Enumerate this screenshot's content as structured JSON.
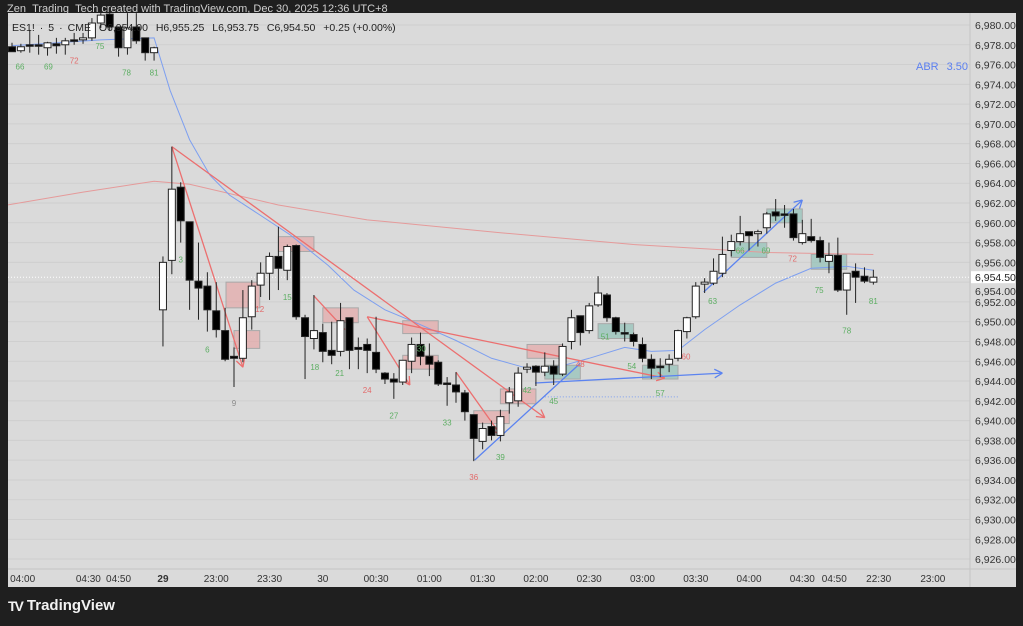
{
  "header": {
    "attribution": "Zen_Trading_Tech created with TradingView.com, Dec 30, 2025 12:36 UTC+8"
  },
  "legend": {
    "symbol": "ES1!",
    "interval": "5",
    "exchange": "CME",
    "open": "O6,954.00",
    "high": "H6,955.25",
    "low": "L6,953.75",
    "close": "C6,954.50",
    "change": "+0.25 (+0.00%)"
  },
  "indicator": {
    "name": "ABR",
    "value": "3.50"
  },
  "brand": {
    "name": "TradingView"
  },
  "colors": {
    "background": "#dadada",
    "frame": "#1f1f1f",
    "ema": "#7d9ff0",
    "ma": "#e59a9a",
    "trend_red": "#ec6f6f",
    "trend_blue": "#5b83f0",
    "label_green": "#5cae62",
    "label_red": "#e26a6a",
    "label_gray": "#8a8a8a",
    "box_red": "#e8a0a0",
    "box_green": "#8cc0b6"
  },
  "chart_data": {
    "type": "candlestick",
    "title": "",
    "ylim": [
      6925.0,
      6981.2
    ],
    "grid": true,
    "current_price": "6,954.50",
    "y_ticks": [
      "6,980.00",
      "6,978.00",
      "6,976.00",
      "6,974.00",
      "6,972.00",
      "6,970.00",
      "6,968.00",
      "6,966.00",
      "6,964.00",
      "6,962.00",
      "6,960.00",
      "6,958.00",
      "6,956.00",
      "6,954.00",
      "6,952.00",
      "6,950.00",
      "6,948.00",
      "6,946.00",
      "6,944.00",
      "6,942.00",
      "6,940.00",
      "6,938.00",
      "6,936.00",
      "6,934.00",
      "6,932.00",
      "6,930.00",
      "6,928.00",
      "6,926.00"
    ],
    "x_ticks": [
      {
        "bar": 1.2,
        "label": "04:00"
      },
      {
        "bar": 8.6,
        "label": "04:30"
      },
      {
        "bar": 12,
        "label": "04:50"
      },
      {
        "bar": 17,
        "label": "29",
        "bold": true
      },
      {
        "bar": 23,
        "label": "23:00"
      },
      {
        "bar": 29,
        "label": "23:30"
      },
      {
        "bar": 35,
        "label": "30"
      },
      {
        "bar": 41,
        "label": "00:30"
      },
      {
        "bar": 47,
        "label": "01:00"
      },
      {
        "bar": 53,
        "label": "01:30"
      },
      {
        "bar": 59,
        "label": "02:00"
      },
      {
        "bar": 65,
        "label": "02:30"
      },
      {
        "bar": 71,
        "label": "03:00"
      },
      {
        "bar": 77,
        "label": "03:30"
      },
      {
        "bar": 83,
        "label": "04:00"
      },
      {
        "bar": 89,
        "label": "04:30"
      },
      {
        "bar": 92.6,
        "label": "04:50"
      },
      {
        "bar": 97.6,
        "label": "22:30"
      },
      {
        "bar": 103.7,
        "label": "23:00"
      }
    ],
    "ohlc_order": [
      "open",
      "high",
      "low",
      "close"
    ],
    "candles": [
      [
        6977.8,
        6978.2,
        6977.3,
        6977.3
      ],
      [
        6977.4,
        6978.1,
        6977.2,
        6977.8
      ],
      [
        6978.0,
        6979.5,
        6977.2,
        6978.0
      ],
      [
        6978.0,
        6979.0,
        6977.0,
        6978.0
      ],
      [
        6977.7,
        6978.3,
        6976.9,
        6978.2
      ],
      [
        6978.1,
        6978.7,
        6977.1,
        6977.9
      ],
      [
        6978.0,
        6978.7,
        6977.0,
        6978.4
      ],
      [
        6978.5,
        6979.2,
        6978.0,
        6978.5
      ],
      [
        6978.5,
        6979.2,
        6978.1,
        6978.7
      ],
      [
        6978.7,
        6980.7,
        6978.4,
        6980.2
      ],
      [
        6980.2,
        6981.2,
        6979.7,
        6981.0
      ],
      [
        6981.1,
        6981.2,
        6979.4,
        6979.8
      ],
      [
        6979.8,
        6979.8,
        6976.8,
        6977.7
      ],
      [
        6977.7,
        6981.2,
        6977.0,
        6979.7
      ],
      [
        6979.8,
        6981.2,
        6978.1,
        6978.4
      ],
      [
        6978.7,
        6978.7,
        6976.4,
        6977.2
      ],
      [
        6977.2,
        6977.8,
        6976.4,
        6977.7
      ],
      [
        6951.2,
        6956.6,
        6947.5,
        6956.0
      ],
      [
        6956.2,
        6967.7,
        6954.8,
        6963.4
      ],
      [
        6963.6,
        6964.1,
        6958.0,
        6960.2
      ],
      [
        6960.1,
        6960.1,
        6951.2,
        6954.2
      ],
      [
        6954.1,
        6958.0,
        6950.2,
        6953.4
      ],
      [
        6953.6,
        6955.0,
        6949.0,
        6951.2
      ],
      [
        6951.1,
        6954.0,
        6948.4,
        6949.2
      ],
      [
        6949.1,
        6951.4,
        6946.0,
        6946.2
      ],
      [
        6946.5,
        6947.4,
        6943.4,
        6946.3
      ],
      [
        6946.3,
        6953.2,
        6945.9,
        6950.4
      ],
      [
        6950.5,
        6954.2,
        6949.2,
        6953.6
      ],
      [
        6953.7,
        6956.0,
        6952.5,
        6954.9
      ],
      [
        6954.9,
        6957.0,
        6952.2,
        6956.6
      ],
      [
        6956.6,
        6959.6,
        6953.2,
        6955.4
      ],
      [
        6955.2,
        6957.8,
        6954.2,
        6957.6
      ],
      [
        6957.7,
        6957.8,
        6950.2,
        6950.5
      ],
      [
        6950.4,
        6950.7,
        6944.2,
        6948.5
      ],
      [
        6948.3,
        6952.7,
        6947.2,
        6949.1
      ],
      [
        6948.9,
        6949.8,
        6945.9,
        6947.0
      ],
      [
        6947.1,
        6950.0,
        6945.7,
        6946.6
      ],
      [
        6947.0,
        6951.9,
        6946.5,
        6950.1
      ],
      [
        6950.4,
        6950.4,
        6945.2,
        6947.1
      ],
      [
        6947.4,
        6948.4,
        6945.2,
        6947.2
      ],
      [
        6947.7,
        6948.3,
        6944.8,
        6947.1
      ],
      [
        6946.9,
        6950.5,
        6944.8,
        6945.2
      ],
      [
        6944.8,
        6944.9,
        6943.7,
        6944.2
      ],
      [
        6944.2,
        6944.8,
        6942.2,
        6943.9
      ],
      [
        6943.9,
        6946.1,
        6943.6,
        6946.1
      ],
      [
        6946.0,
        6948.4,
        6944.8,
        6947.7
      ],
      [
        6947.7,
        6948.9,
        6945.6,
        6946.5
      ],
      [
        6946.5,
        6947.8,
        6944.5,
        6945.7
      ],
      [
        6945.9,
        6946.1,
        6943.5,
        6943.7
      ],
      [
        6943.8,
        6944.4,
        6941.5,
        6943.7
      ],
      [
        6943.6,
        6944.9,
        6941.8,
        6942.9
      ],
      [
        6942.8,
        6943.1,
        6940.0,
        6940.9
      ],
      [
        6940.6,
        6940.6,
        6935.9,
        6938.2
      ],
      [
        6937.9,
        6939.8,
        6937.1,
        6939.2
      ],
      [
        6939.4,
        6940.0,
        6938.0,
        6938.5
      ],
      [
        6938.5,
        6941.1,
        6937.9,
        6940.4
      ],
      [
        6941.8,
        6943.4,
        6940.7,
        6942.9
      ],
      [
        6942.0,
        6945.4,
        6941.4,
        6944.8
      ],
      [
        6945.2,
        6945.8,
        6944.8,
        6945.4
      ],
      [
        6945.5,
        6945.6,
        6943.5,
        6944.9
      ],
      [
        6944.9,
        6946.9,
        6944.5,
        6945.5
      ],
      [
        6945.5,
        6946.1,
        6943.6,
        6944.7
      ],
      [
        6944.7,
        6947.8,
        6944.5,
        6947.5
      ],
      [
        6948.0,
        6951.2,
        6947.2,
        6950.4
      ],
      [
        6950.6,
        6950.6,
        6947.6,
        6948.9
      ],
      [
        6949.1,
        6951.9,
        6948.8,
        6951.6
      ],
      [
        6951.7,
        6954.6,
        6951.5,
        6952.9
      ],
      [
        6952.7,
        6952.9,
        6950.0,
        6950.4
      ],
      [
        6950.4,
        6950.5,
        6948.7,
        6949.0
      ],
      [
        6948.9,
        6949.9,
        6948.0,
        6948.8
      ],
      [
        6948.7,
        6948.9,
        6947.5,
        6948.0
      ],
      [
        6947.7,
        6948.4,
        6945.9,
        6946.3
      ],
      [
        6946.2,
        6946.7,
        6944.2,
        6945.3
      ],
      [
        6945.5,
        6946.3,
        6944.4,
        6945.4
      ],
      [
        6945.7,
        6946.7,
        6944.9,
        6946.2
      ],
      [
        6946.3,
        6949.2,
        6946.0,
        6949.1
      ],
      [
        6949.0,
        6950.5,
        6948.3,
        6950.4
      ],
      [
        6950.5,
        6954.0,
        6950.3,
        6953.6
      ],
      [
        6953.8,
        6954.4,
        6952.9,
        6954.0
      ],
      [
        6953.9,
        6956.4,
        6953.7,
        6955.1
      ],
      [
        6954.9,
        6958.6,
        6954.5,
        6956.8
      ],
      [
        6957.2,
        6958.8,
        6956.6,
        6958.1
      ],
      [
        6958.1,
        6960.7,
        6957.7,
        6958.9
      ],
      [
        6959.1,
        6959.1,
        6957.2,
        6958.7
      ],
      [
        6958.9,
        6959.3,
        6957.6,
        6959.1
      ],
      [
        6959.5,
        6961.1,
        6958.9,
        6960.9
      ],
      [
        6961.1,
        6962.4,
        6960.2,
        6960.7
      ],
      [
        6960.9,
        6961.8,
        6959.5,
        6960.9
      ],
      [
        6960.9,
        6961.4,
        6958.2,
        6958.5
      ],
      [
        6958.0,
        6960.3,
        6957.8,
        6958.9
      ],
      [
        6958.6,
        6960.4,
        6958.0,
        6958.2
      ],
      [
        6958.2,
        6958.6,
        6956.0,
        6956.5
      ],
      [
        6956.1,
        6958.0,
        6954.9,
        6956.7
      ],
      [
        6956.7,
        6958.5,
        6953.0,
        6953.2
      ],
      [
        6953.2,
        6954.9,
        6950.7,
        6954.9
      ],
      [
        6955.1,
        6955.9,
        6951.9,
        6954.5
      ],
      [
        6954.6,
        6955.5,
        6953.9,
        6954.1
      ],
      [
        6954.0,
        6955.25,
        6953.75,
        6954.5
      ]
    ],
    "ema_line": [
      [
        0,
        6977.9
      ],
      [
        10,
        6978.5
      ],
      [
        16,
        6978.7
      ],
      [
        17.8,
        6973.4
      ],
      [
        20,
        6968.4
      ],
      [
        22.3,
        6964.8
      ],
      [
        24.5,
        6962.8
      ],
      [
        27.9,
        6960.8
      ],
      [
        31.3,
        6958.8
      ],
      [
        35.6,
        6955.7
      ],
      [
        38.5,
        6953.2
      ],
      [
        42,
        6951.2
      ],
      [
        46,
        6949.7
      ],
      [
        50,
        6948.1
      ],
      [
        54,
        6946.3
      ],
      [
        58,
        6945.3
      ],
      [
        61,
        6945.3
      ],
      [
        65,
        6946.3
      ],
      [
        69,
        6947.4
      ],
      [
        72,
        6947.0
      ],
      [
        75,
        6947.1
      ],
      [
        78,
        6949.2
      ],
      [
        82,
        6951.7
      ],
      [
        86,
        6953.9
      ],
      [
        90,
        6955.4
      ],
      [
        94,
        6955.6
      ],
      [
        97,
        6955.2
      ]
    ],
    "ma_line": [
      [
        -0.5,
        6961.8
      ],
      [
        8,
        6963.1
      ],
      [
        16,
        6964.2
      ],
      [
        20,
        6963.9
      ],
      [
        30,
        6961.8
      ],
      [
        40,
        6960.3
      ],
      [
        55,
        6959.0
      ],
      [
        70,
        6957.8
      ],
      [
        85,
        6957.0
      ],
      [
        97,
        6956.8
      ]
    ],
    "red_trendlines": [
      {
        "from": [
          18,
          6967.7
        ],
        "to": [
          26,
          6945.4
        ],
        "arrow": true
      },
      {
        "from": [
          18,
          6967.7
        ],
        "to": [
          60,
          6940.3
        ],
        "arrow": true
      },
      {
        "from": [
          40,
          6950.5
        ],
        "to": [
          73.5,
          6944.3
        ],
        "arrow": true
      },
      {
        "from": [
          40,
          6950.5
        ],
        "to": [
          44.8,
          6943.6
        ],
        "arrow": true
      },
      {
        "from": [
          34,
          6952.6
        ],
        "to": [
          37.5,
          6949.2
        ],
        "arrow": false
      },
      {
        "from": [
          50,
          6944.9
        ],
        "to": [
          55,
          6938.6
        ],
        "arrow": true
      }
    ],
    "blue_trendlines": [
      {
        "from": [
          52.1,
          6936.0
        ],
        "to": [
          64,
          6945.8
        ],
        "arrow": false
      },
      {
        "from": [
          58.9,
          6943.8
        ],
        "to": [
          80,
          6944.8
        ],
        "arrow": true
      },
      {
        "from": [
          77.9,
          6953.0
        ],
        "to": [
          89,
          6962.3
        ],
        "arrow": true
      }
    ],
    "dotted_level": {
      "from_bar": 60,
      "to_bar": 75,
      "price": 6942.4
    },
    "red_boxes": [
      [
        24.1,
        27.9,
        6954.0,
        6951.4
      ],
      [
        25,
        27.9,
        6949.1,
        6947.3
      ],
      [
        30,
        34,
        6958.6,
        6957.1
      ],
      [
        35,
        39,
        6951.4,
        6949.9
      ],
      [
        44,
        48,
        6950.1,
        6948.8
      ],
      [
        44,
        48,
        6946.6,
        6945.2
      ],
      [
        52,
        56,
        6941.0,
        6939.7
      ],
      [
        55,
        59,
        6943.2,
        6941.7
      ],
      [
        58,
        62,
        6947.7,
        6946.3
      ]
    ],
    "green_boxes": [
      [
        60,
        64,
        6945.6,
        6944.2
      ],
      [
        66,
        70,
        6949.8,
        6948.3
      ],
      [
        71,
        75,
        6945.6,
        6944.2
      ],
      [
        81,
        85,
        6958.0,
        6956.5
      ],
      [
        85,
        89,
        6961.4,
        6960.0
      ],
      [
        90,
        94,
        6956.8,
        6955.3
      ]
    ],
    "bar_count_labels": [
      {
        "text": "66",
        "bar": 0.9,
        "price": 6975.8,
        "tone": "green"
      },
      {
        "text": "69",
        "bar": 4.1,
        "price": 6975.8,
        "tone": "green"
      },
      {
        "text": "72",
        "bar": 7.0,
        "price": 6976.4,
        "tone": "red"
      },
      {
        "text": "75",
        "bar": 9.9,
        "price": 6977.9,
        "tone": "green"
      },
      {
        "text": "78",
        "bar": 12.9,
        "price": 6975.2,
        "tone": "green"
      },
      {
        "text": "81",
        "bar": 16.0,
        "price": 6975.2,
        "tone": "green"
      },
      {
        "text": "3",
        "bar": 19.0,
        "price": 6956.3,
        "tone": "green"
      },
      {
        "text": "6",
        "bar": 22.0,
        "price": 6947.2,
        "tone": "green"
      },
      {
        "text": "9",
        "bar": 25.0,
        "price": 6941.8,
        "tone": "gray"
      },
      {
        "text": "12",
        "bar": 27.9,
        "price": 6951.3,
        "tone": "red"
      },
      {
        "text": "15",
        "bar": 31.0,
        "price": 6952.5,
        "tone": "green"
      },
      {
        "text": "18",
        "bar": 34.1,
        "price": 6945.4,
        "tone": "green"
      },
      {
        "text": "21",
        "bar": 36.9,
        "price": 6944.8,
        "tone": "green"
      },
      {
        "text": "24",
        "bar": 40.0,
        "price": 6943.1,
        "tone": "red"
      },
      {
        "text": "27",
        "bar": 43.0,
        "price": 6940.5,
        "tone": "green"
      },
      {
        "text": "30",
        "bar": 46.1,
        "price": 6947.3,
        "tone": "green"
      },
      {
        "text": "33",
        "bar": 49.0,
        "price": 6939.8,
        "tone": "green"
      },
      {
        "text": "36",
        "bar": 52.0,
        "price": 6934.3,
        "tone": "red"
      },
      {
        "text": "39",
        "bar": 55.0,
        "price": 6936.3,
        "tone": "green"
      },
      {
        "text": "42",
        "bar": 58.0,
        "price": 6943.1,
        "tone": "green"
      },
      {
        "text": "45",
        "bar": 61.0,
        "price": 6942.0,
        "tone": "green"
      },
      {
        "text": "48",
        "bar": 64.0,
        "price": 6945.7,
        "tone": "red"
      },
      {
        "text": "51",
        "bar": 66.8,
        "price": 6948.5,
        "tone": "green"
      },
      {
        "text": "54",
        "bar": 69.8,
        "price": 6945.5,
        "tone": "green"
      },
      {
        "text": "57",
        "bar": 73.0,
        "price": 6942.8,
        "tone": "green"
      },
      {
        "text": "60",
        "bar": 75.9,
        "price": 6946.5,
        "tone": "red"
      },
      {
        "text": "63",
        "bar": 78.9,
        "price": 6952.1,
        "tone": "green"
      },
      {
        "text": "66",
        "bar": 82.0,
        "price": 6957.2,
        "tone": "green"
      },
      {
        "text": "69",
        "bar": 84.9,
        "price": 6957.2,
        "tone": "green"
      },
      {
        "text": "72",
        "bar": 87.9,
        "price": 6956.4,
        "tone": "red"
      },
      {
        "text": "75",
        "bar": 90.9,
        "price": 6953.2,
        "tone": "green"
      },
      {
        "text": "78",
        "bar": 94.0,
        "price": 6949.1,
        "tone": "green"
      },
      {
        "text": "81",
        "bar": 97.0,
        "price": 6952.1,
        "tone": "green"
      }
    ]
  }
}
